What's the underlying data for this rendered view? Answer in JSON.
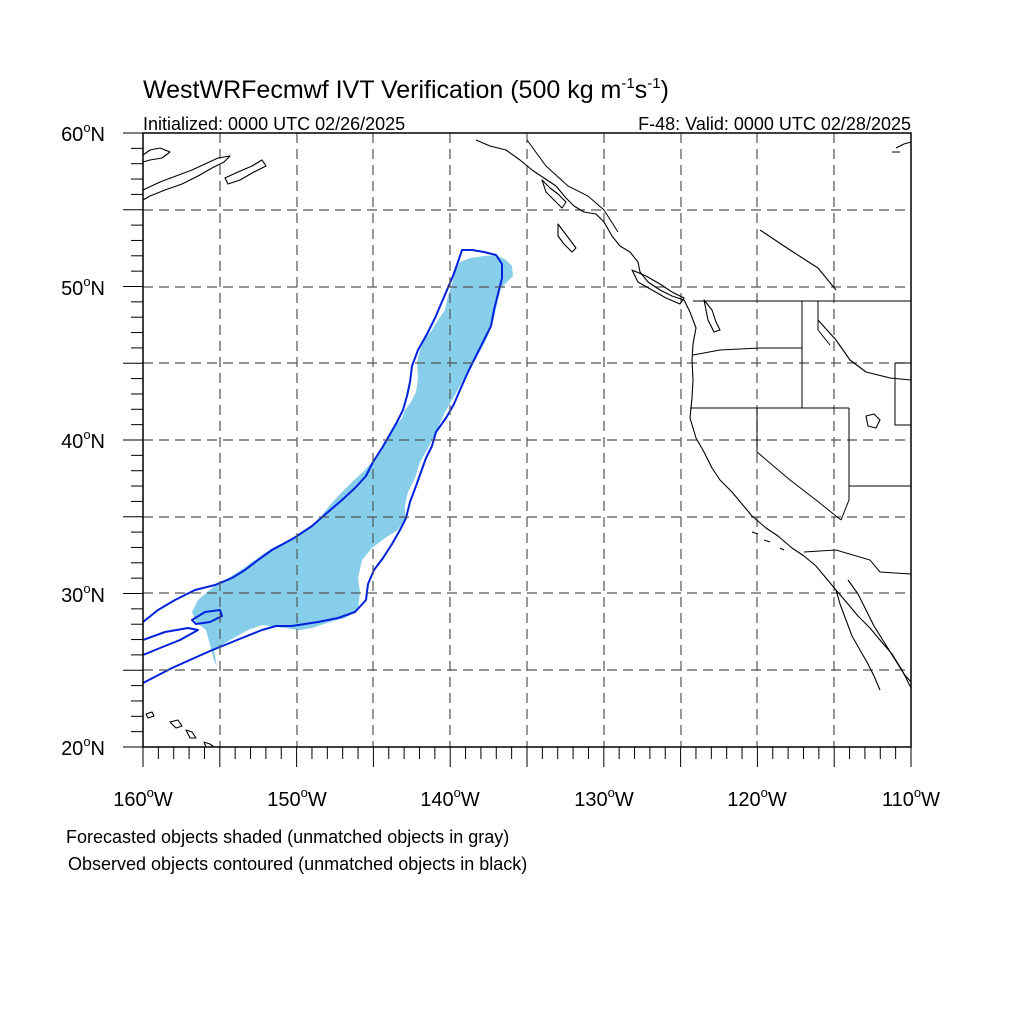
{
  "title": {
    "main": "WestWRFecmwf IVT Verification (500 kg m",
    "sup1": "-1",
    "mid": "s",
    "sup2": "-1",
    "end": ")"
  },
  "subtitle": {
    "initialized": "Initialized: 0000 UTC 02/26/2025",
    "valid": "F-48: Valid: 0000 UTC 02/28/2025"
  },
  "axes": {
    "lon_range": [
      -160,
      -110
    ],
    "lat_range": [
      20,
      60
    ],
    "lon_ticks": [
      {
        "deg": "160",
        "sup": "o",
        "hemi": "W"
      },
      {
        "deg": "150",
        "sup": "o",
        "hemi": "W"
      },
      {
        "deg": "140",
        "sup": "o",
        "hemi": "W"
      },
      {
        "deg": "130",
        "sup": "o",
        "hemi": "W"
      },
      {
        "deg": "120",
        "sup": "o",
        "hemi": "W"
      },
      {
        "deg": "110",
        "sup": "o",
        "hemi": "W"
      }
    ],
    "lat_ticks": [
      {
        "deg": "60",
        "sup": "o",
        "hemi": "N"
      },
      {
        "deg": "50",
        "sup": "o",
        "hemi": "N"
      },
      {
        "deg": "40",
        "sup": "o",
        "hemi": "N"
      },
      {
        "deg": "30",
        "sup": "o",
        "hemi": "N"
      },
      {
        "deg": "20",
        "sup": "o",
        "hemi": "N"
      }
    ],
    "grid": "dashed every 5 degrees"
  },
  "colors": {
    "forecast_fill": "#87CEEB",
    "observed_contour": "#0022dd",
    "coastline": "#000000"
  },
  "legend_text": {
    "line1": "Forecasted objects shaded (unmatched objects in gray)",
    "line2": "Observed objects contoured (unmatched objects in black)"
  }
}
